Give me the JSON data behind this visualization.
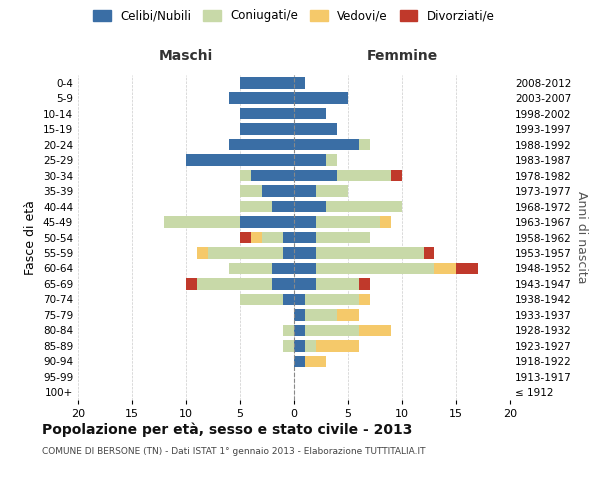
{
  "age_groups": [
    "100+",
    "95-99",
    "90-94",
    "85-89",
    "80-84",
    "75-79",
    "70-74",
    "65-69",
    "60-64",
    "55-59",
    "50-54",
    "45-49",
    "40-44",
    "35-39",
    "30-34",
    "25-29",
    "20-24",
    "15-19",
    "10-14",
    "5-9",
    "0-4"
  ],
  "birth_years": [
    "≤ 1912",
    "1913-1917",
    "1918-1922",
    "1923-1927",
    "1928-1932",
    "1933-1937",
    "1938-1942",
    "1943-1947",
    "1948-1952",
    "1953-1957",
    "1958-1962",
    "1963-1967",
    "1968-1972",
    "1973-1977",
    "1978-1982",
    "1983-1987",
    "1988-1992",
    "1993-1997",
    "1998-2002",
    "2003-2007",
    "2008-2012"
  ],
  "colors": {
    "celibi": "#3a6ea5",
    "coniugati": "#c8d9a8",
    "vedovi": "#f5c96a",
    "divorziati": "#c0392b"
  },
  "maschi": {
    "celibi": [
      0,
      0,
      0,
      0,
      0,
      0,
      1,
      2,
      2,
      1,
      1,
      5,
      2,
      3,
      4,
      10,
      6,
      5,
      5,
      6,
      5
    ],
    "coniugati": [
      0,
      0,
      0,
      1,
      1,
      0,
      4,
      7,
      4,
      7,
      2,
      7,
      3,
      2,
      1,
      0,
      0,
      0,
      0,
      0,
      0
    ],
    "vedovi": [
      0,
      0,
      0,
      0,
      0,
      0,
      0,
      0,
      0,
      1,
      1,
      0,
      0,
      0,
      0,
      0,
      0,
      0,
      0,
      0,
      0
    ],
    "divorziati": [
      0,
      0,
      0,
      0,
      0,
      0,
      0,
      1,
      0,
      0,
      1,
      0,
      0,
      0,
      0,
      0,
      0,
      0,
      0,
      0,
      0
    ]
  },
  "femmine": {
    "celibi": [
      0,
      0,
      1,
      1,
      1,
      1,
      1,
      2,
      2,
      2,
      2,
      2,
      3,
      2,
      4,
      3,
      6,
      4,
      3,
      5,
      1
    ],
    "coniugati": [
      0,
      0,
      0,
      1,
      5,
      3,
      5,
      4,
      11,
      10,
      5,
      6,
      7,
      3,
      5,
      1,
      1,
      0,
      0,
      0,
      0
    ],
    "vedovi": [
      0,
      0,
      2,
      4,
      3,
      2,
      1,
      0,
      2,
      0,
      0,
      1,
      0,
      0,
      0,
      0,
      0,
      0,
      0,
      0,
      0
    ],
    "divorziati": [
      0,
      0,
      0,
      0,
      0,
      0,
      0,
      1,
      2,
      1,
      0,
      0,
      0,
      0,
      1,
      0,
      0,
      0,
      0,
      0,
      0
    ]
  },
  "xlim": 20,
  "title": "Popolazione per età, sesso e stato civile - 2013",
  "subtitle": "COMUNE DI BERSONE (TN) - Dati ISTAT 1° gennaio 2013 - Elaborazione TUTTITALIA.IT",
  "ylabel_left": "Fasce di età",
  "ylabel_right": "Anni di nascita",
  "header_left": "Maschi",
  "header_right": "Femmine",
  "legend_labels": [
    "Celibi/Nubili",
    "Coniugati/e",
    "Vedovi/e",
    "Divorziati/e"
  ],
  "bg_color": "#ffffff",
  "grid_color": "#cccccc"
}
